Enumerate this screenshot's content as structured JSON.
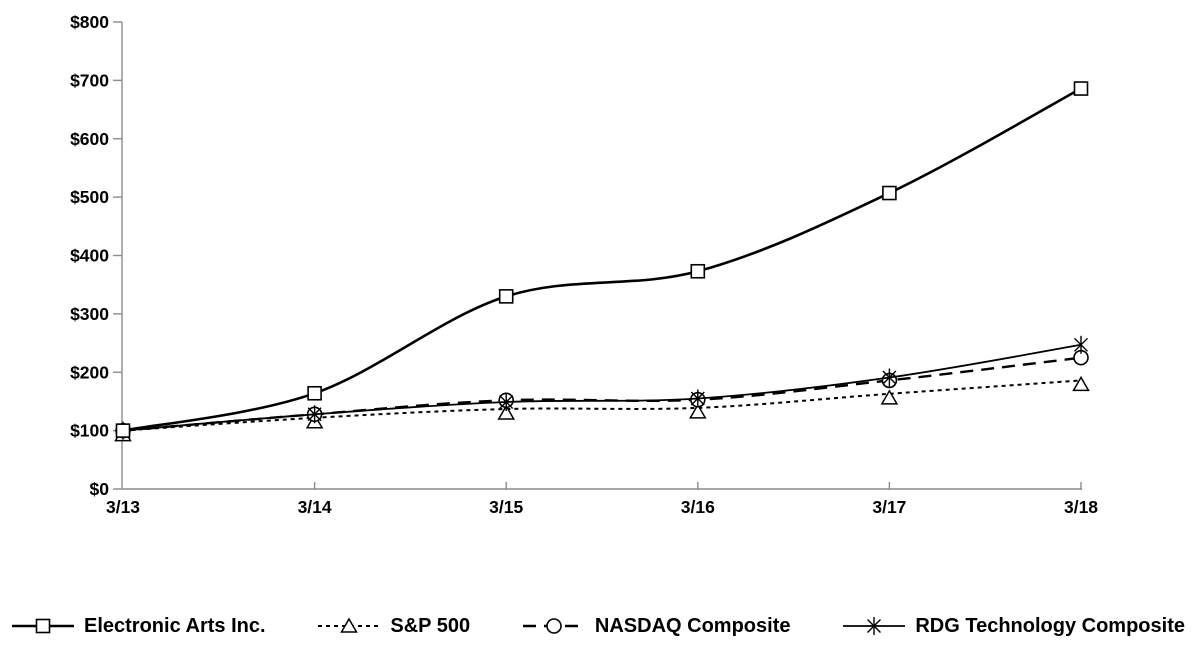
{
  "chart_data": {
    "type": "line",
    "title": "",
    "xlabel": "",
    "ylabel": "",
    "x_categories": [
      "3/13",
      "3/14",
      "3/15",
      "3/16",
      "3/17",
      "3/18"
    ],
    "y_tick_labels": [
      "$0",
      "$100",
      "$200",
      "$300",
      "$400",
      "$500",
      "$600",
      "$700",
      "$800"
    ],
    "ylim": [
      0,
      800
    ],
    "y_tick_step": 100,
    "grid": "off",
    "legend_position": "bottom",
    "colors": {
      "background": "#ffffff",
      "series_stroke": "#000000",
      "axis_stroke": "#8c8c8c",
      "label_text": "#000000"
    },
    "series": [
      {
        "name": "Electronic Arts Inc.",
        "slug": "electronic-arts",
        "marker": "square",
        "line_style": "solid",
        "line_width": 2.6,
        "values": [
          100,
          164,
          330,
          373,
          507,
          686
        ]
      },
      {
        "name": "S&P 500",
        "slug": "sp500",
        "marker": "triangle",
        "line_style": "dotted",
        "line_width": 2,
        "values": [
          100,
          122,
          137,
          139,
          163,
          186
        ]
      },
      {
        "name": "NASDAQ Composite",
        "slug": "nasdaq",
        "marker": "circle",
        "line_style": "dashed",
        "line_width": 2.4,
        "values": [
          100,
          128,
          152,
          153,
          186,
          225
        ]
      },
      {
        "name": "RDG Technology Composite",
        "slug": "rdg-technology",
        "marker": "asterisk",
        "line_style": "solid",
        "line_width": 1.8,
        "values": [
          100,
          128,
          149,
          155,
          191,
          247
        ]
      }
    ]
  }
}
